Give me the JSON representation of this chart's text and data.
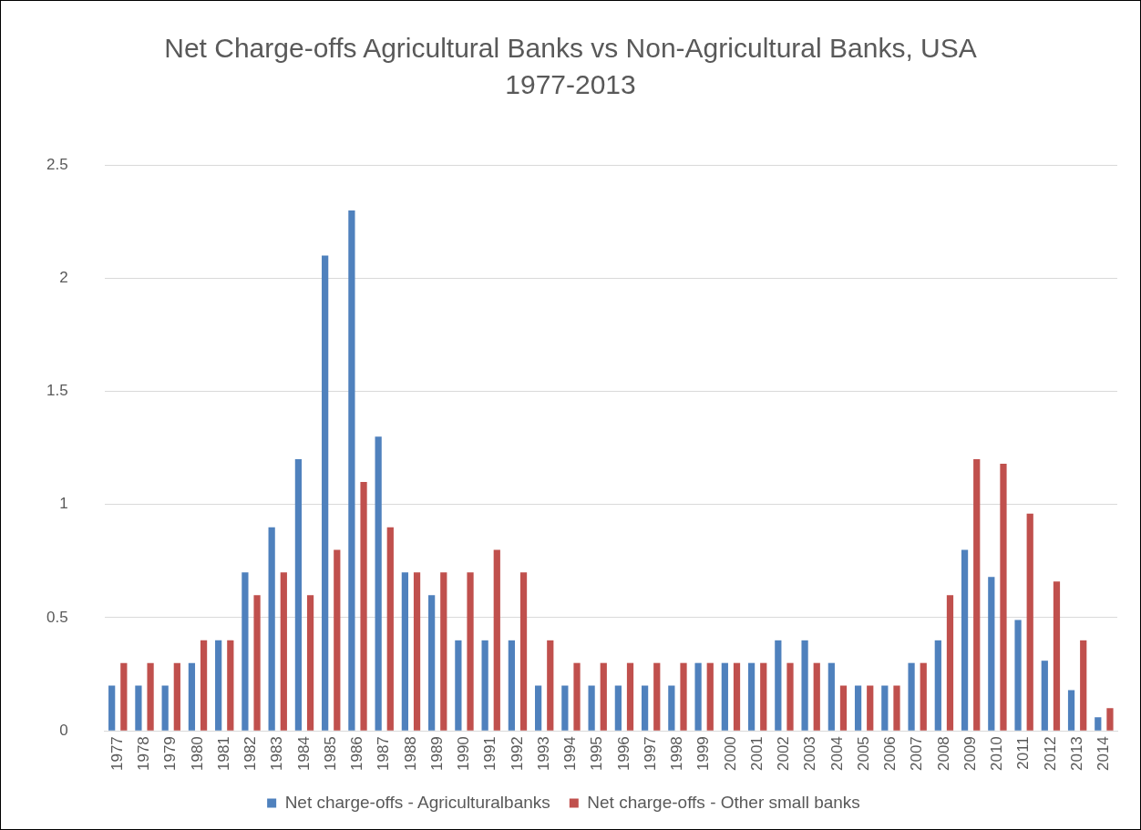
{
  "chart_data": {
    "type": "bar",
    "title": "Net Charge-offs Agricultural Banks vs Non-Agricultural Banks, USA 1977-2013",
    "categories": [
      "1977",
      "1978",
      "1979",
      "1980",
      "1981",
      "1982",
      "1983",
      "1984",
      "1985",
      "1986",
      "1987",
      "1988",
      "1989",
      "1990",
      "1991",
      "1992",
      "1993",
      "1994",
      "1995",
      "1996",
      "1997",
      "1998",
      "1999",
      "2000",
      "2001",
      "2002",
      "2003",
      "2004",
      "2005",
      "2006",
      "2007",
      "2008",
      "2009",
      "2010",
      "2011",
      "2012",
      "2013",
      "2014"
    ],
    "series": [
      {
        "name": "Net charge-offs - Agriculturalbanks",
        "color": "#4f81bd",
        "values": [
          0.2,
          0.2,
          0.2,
          0.3,
          0.4,
          0.7,
          0.9,
          1.2,
          2.1,
          2.3,
          1.3,
          0.7,
          0.6,
          0.4,
          0.4,
          0.4,
          0.2,
          0.2,
          0.2,
          0.2,
          0.2,
          0.2,
          0.3,
          0.3,
          0.3,
          0.4,
          0.4,
          0.3,
          0.2,
          0.2,
          0.3,
          0.4,
          0.8,
          0.68,
          0.49,
          0.31,
          0.18,
          0.06
        ]
      },
      {
        "name": "Net charge-offs - Other small banks",
        "color": "#c0504d",
        "values": [
          0.3,
          0.3,
          0.3,
          0.4,
          0.4,
          0.6,
          0.7,
          0.6,
          0.8,
          1.1,
          0.9,
          0.7,
          0.7,
          0.7,
          0.8,
          0.7,
          0.4,
          0.3,
          0.3,
          0.3,
          0.3,
          0.3,
          0.3,
          0.3,
          0.3,
          0.3,
          0.3,
          0.2,
          0.2,
          0.2,
          0.3,
          0.6,
          1.2,
          1.18,
          0.96,
          0.66,
          0.4,
          0.1
        ]
      }
    ],
    "ylim": [
      0,
      2.5
    ],
    "yticks": [
      0,
      0.5,
      1,
      1.5,
      2,
      2.5
    ],
    "grid": "y",
    "legend": "bottom"
  }
}
